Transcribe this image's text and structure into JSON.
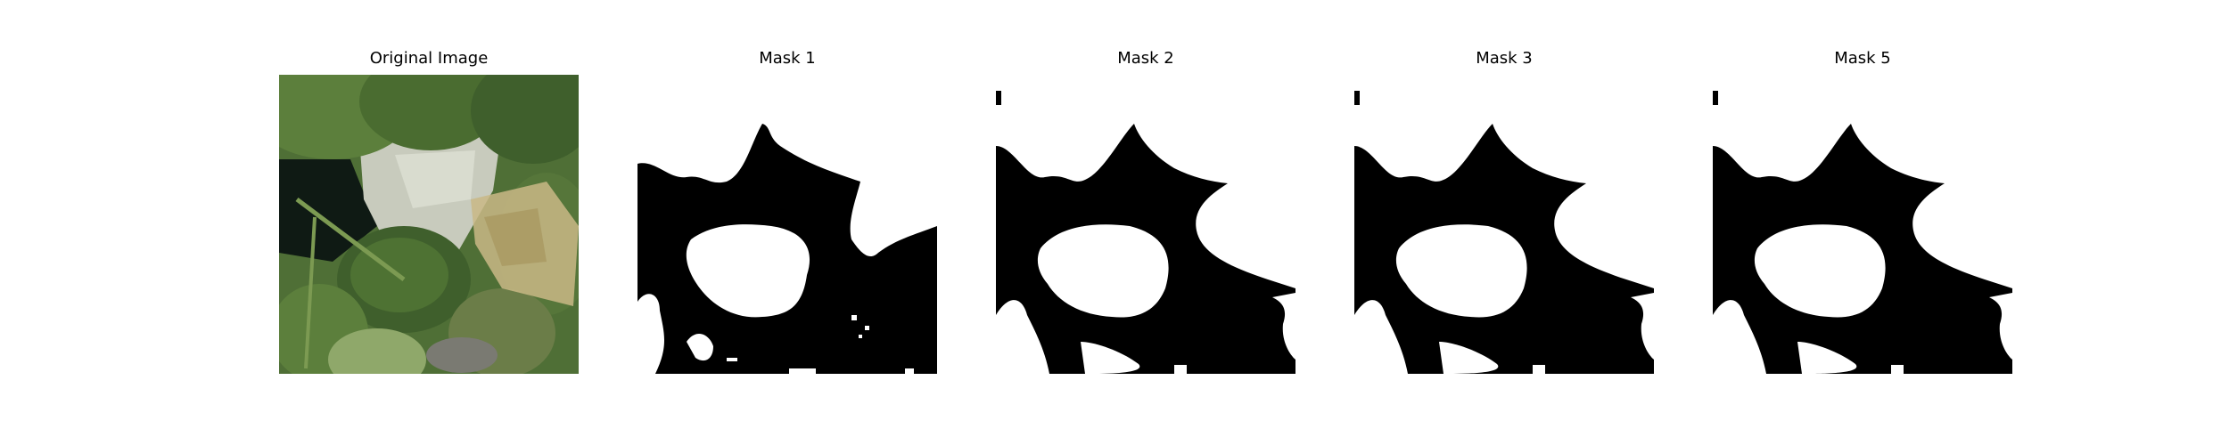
{
  "figure": {
    "panels": [
      {
        "title": "Original Image",
        "kind": "photo"
      },
      {
        "title": "Mask 1",
        "kind": "mask",
        "variant": "mask1"
      },
      {
        "title": "Mask 2",
        "kind": "mask",
        "variant": "mask2"
      },
      {
        "title": "Mask 3",
        "kind": "mask",
        "variant": "mask3"
      },
      {
        "title": "Mask 5",
        "kind": "mask",
        "variant": "mask5"
      }
    ]
  },
  "colors": {
    "background": "#ffffff",
    "mask_foreground": "#ffffff",
    "mask_background": "#000000",
    "leaf_dark": "#3f5f2c",
    "leaf_mid": "#5c7f3c",
    "leaf_light": "#8fa86a",
    "pot": "#c8cbbd",
    "shadow": "#0f1a14",
    "dry_leaf": "#c9b886"
  }
}
